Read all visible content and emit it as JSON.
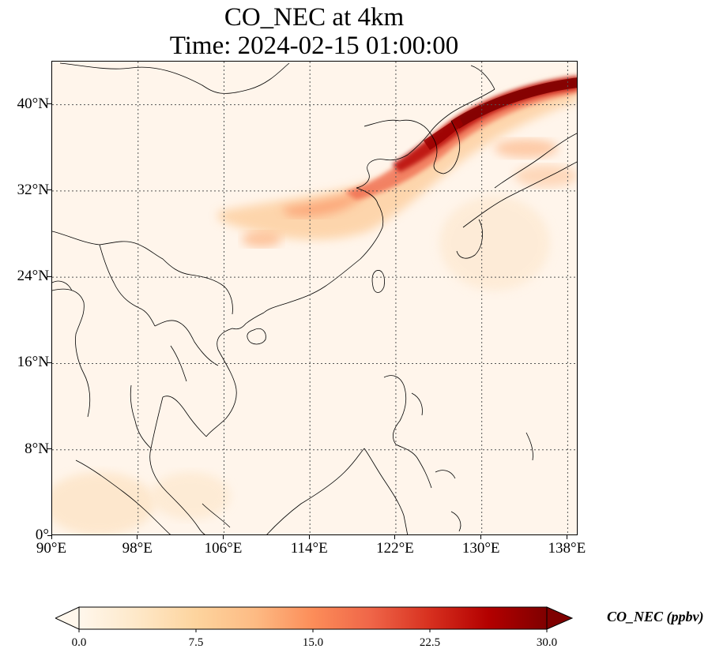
{
  "title": {
    "line1": "CO_NEC at 4km",
    "line2": "Time: 2024-02-15 01:00:00"
  },
  "map": {
    "projection": "PlateCarree",
    "lon_range": [
      90,
      139
    ],
    "lat_range": [
      0,
      44
    ],
    "lon_ticks": [
      {
        "value": 90,
        "label": "90°E"
      },
      {
        "value": 98,
        "label": "98°E"
      },
      {
        "value": 106,
        "label": "106°E"
      },
      {
        "value": 114,
        "label": "114°E"
      },
      {
        "value": 122,
        "label": "122°E"
      },
      {
        "value": 130,
        "label": "130°E"
      },
      {
        "value": 138,
        "label": "138°E"
      }
    ],
    "lat_ticks": [
      {
        "value": 0,
        "label": "0°"
      },
      {
        "value": 8,
        "label": "8°N"
      },
      {
        "value": 16,
        "label": "16°N"
      },
      {
        "value": 24,
        "label": "24°N"
      },
      {
        "value": 32,
        "label": "32°N"
      },
      {
        "value": 40,
        "label": "40°N"
      }
    ],
    "gridlines": "dotted",
    "background_color": "#fff5eb",
    "coastline_color": "#000000"
  },
  "colorbar": {
    "label": "CO_NEC (ppbv)",
    "colormap": "OrRd",
    "range": [
      0,
      30
    ],
    "extend": "both",
    "ticks": [
      {
        "value": 0,
        "label": "0.0"
      },
      {
        "value": 7.5,
        "label": "7.5"
      },
      {
        "value": 15,
        "label": "15.0"
      },
      {
        "value": 22.5,
        "label": "22.5"
      },
      {
        "value": 30,
        "label": "30.0"
      }
    ],
    "stops": [
      "#fff7ec",
      "#fee8c8",
      "#fdd49e",
      "#fdbb84",
      "#fc8d59",
      "#ef6548",
      "#d7301f",
      "#b30000",
      "#7f0000"
    ]
  }
}
